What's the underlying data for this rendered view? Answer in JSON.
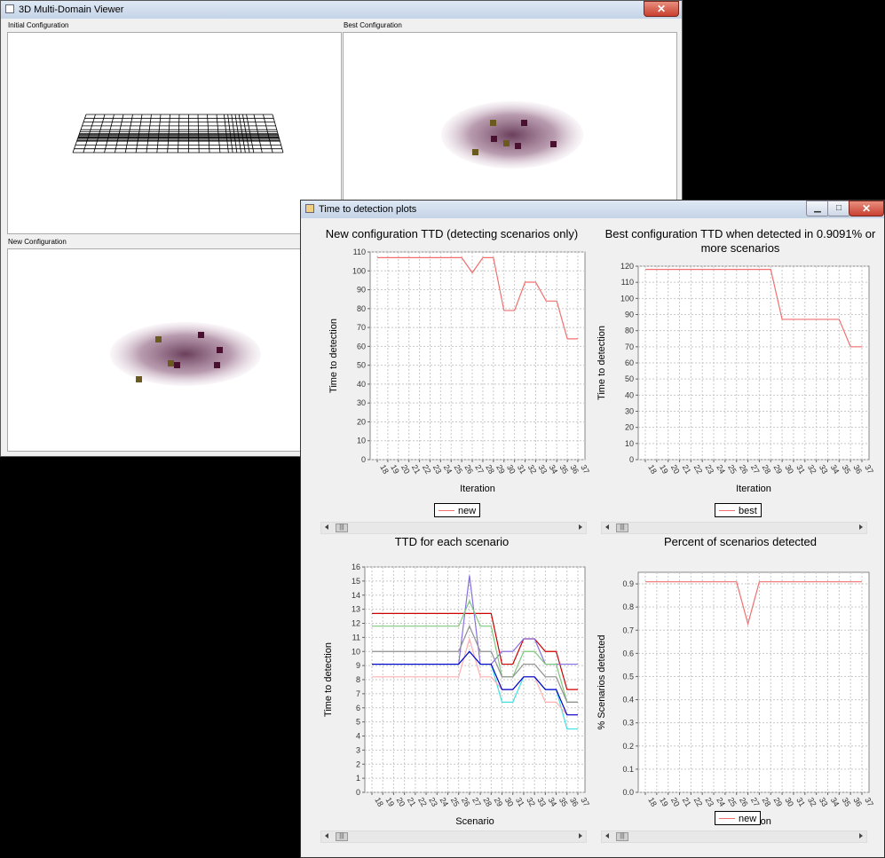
{
  "viewer": {
    "title": "3D Multi-Domain Viewer",
    "close_label": "✕",
    "panels": {
      "initial": "Initial Configuration",
      "best": "Best Configuration",
      "new": "New Configuration"
    }
  },
  "ttd_window": {
    "title": "Time to detection plots",
    "minimize_label": "▁",
    "maximize_label": "□",
    "close_label": "✕"
  },
  "charts": {
    "new_ttd": {
      "title": "New configuration TTD (detecting scenarios only)",
      "ylabel": "Time to detection",
      "xlabel": "Iteration",
      "legend": "new"
    },
    "best_ttd": {
      "title_line1": "Best configuration TTD when detected in 0.9091% or",
      "title_line2": "more scenarios",
      "ylabel": "Time to detection",
      "xlabel": "Iteration",
      "legend": "best"
    },
    "scenario_ttd": {
      "title": "TTD for each scenario",
      "ylabel": "Time to detection",
      "xlabel": "Scenario"
    },
    "percent": {
      "title": "Percent of scenarios detected",
      "ylabel": "% Scenarios detected",
      "xlabel": "Iteration",
      "legend": "new"
    }
  },
  "colors": {
    "new_line": "#f07070",
    "best_line": "#f07070",
    "window_bg": "#f0f0f0",
    "close_red": "#c84030"
  },
  "chart_data": [
    {
      "type": "line",
      "title": "New configuration TTD (detecting scenarios only)",
      "xlabel": "Iteration",
      "ylabel": "Time to detection",
      "categories": [
        "18",
        "19",
        "20",
        "21",
        "22",
        "23",
        "24",
        "25",
        "26",
        "27",
        "28",
        "29",
        "30",
        "31",
        "32",
        "33",
        "34",
        "35",
        "36",
        "37"
      ],
      "ylim": [
        0,
        110
      ],
      "yticks": [
        0,
        10,
        20,
        30,
        40,
        50,
        60,
        70,
        80,
        90,
        100,
        110
      ],
      "series": [
        {
          "name": "new",
          "color": "#f07070",
          "values": [
            107,
            107,
            107,
            107,
            107,
            107,
            107,
            107,
            107,
            99,
            107,
            107,
            79,
            79,
            94,
            94,
            84,
            84,
            64,
            64
          ]
        }
      ],
      "grid": true,
      "legend": "bottom"
    },
    {
      "type": "line",
      "title": "Best configuration TTD when detected in 0.9091% or more scenarios",
      "xlabel": "Iteration",
      "ylabel": "Time to detection",
      "categories": [
        "18",
        "19",
        "20",
        "21",
        "22",
        "23",
        "24",
        "25",
        "26",
        "27",
        "28",
        "29",
        "30",
        "31",
        "32",
        "33",
        "34",
        "35",
        "36",
        "37"
      ],
      "ylim": [
        0,
        120
      ],
      "yticks": [
        0,
        10,
        20,
        30,
        40,
        50,
        60,
        70,
        80,
        90,
        100,
        110,
        120
      ],
      "series": [
        {
          "name": "best",
          "color": "#f07070",
          "values": [
            118,
            118,
            118,
            118,
            118,
            118,
            118,
            118,
            118,
            118,
            118,
            118,
            87,
            87,
            87,
            87,
            87,
            87,
            70,
            70
          ]
        }
      ],
      "grid": true,
      "legend": "bottom"
    },
    {
      "type": "line",
      "title": "TTD for each scenario",
      "xlabel": "Scenario",
      "ylabel": "Time to detection",
      "categories": [
        "18",
        "19",
        "20",
        "21",
        "22",
        "23",
        "24",
        "25",
        "26",
        "27",
        "28",
        "29",
        "30",
        "31",
        "32",
        "33",
        "34",
        "35",
        "36",
        "37"
      ],
      "ylim": [
        0,
        16
      ],
      "yticks": [
        0,
        1,
        2,
        3,
        4,
        5,
        6,
        7,
        8,
        9,
        10,
        11,
        12,
        13,
        14,
        15,
        16
      ],
      "series": [
        {
          "color": "#cc0000",
          "values": [
            12.7,
            12.7,
            12.7,
            12.7,
            12.7,
            12.7,
            12.7,
            12.7,
            12.7,
            12.7,
            12.7,
            12.7,
            9.1,
            9.1,
            10.9,
            10.9,
            10.0,
            10.0,
            7.3,
            7.3
          ]
        },
        {
          "color": "#8870e0",
          "values": [
            9.1,
            9.1,
            9.1,
            9.1,
            9.1,
            9.1,
            9.1,
            9.1,
            9.1,
            15.4,
            9.1,
            9.1,
            10.0,
            10.0,
            10.9,
            10.9,
            9.1,
            9.1,
            9.1,
            9.1
          ]
        },
        {
          "color": "#7ec87e",
          "values": [
            11.8,
            11.8,
            11.8,
            11.8,
            11.8,
            11.8,
            11.8,
            11.8,
            11.8,
            13.6,
            11.8,
            11.8,
            8.2,
            8.2,
            10.0,
            10.0,
            9.1,
            9.1,
            6.4,
            6.4
          ]
        },
        {
          "color": "#909090",
          "values": [
            10.0,
            10.0,
            10.0,
            10.0,
            10.0,
            10.0,
            10.0,
            10.0,
            10.0,
            11.8,
            10.0,
            10.0,
            8.2,
            8.2,
            9.1,
            9.1,
            8.2,
            8.2,
            6.4,
            6.4
          ]
        },
        {
          "color": "#40e0e0",
          "values": [
            9.1,
            9.1,
            9.1,
            9.1,
            9.1,
            9.1,
            9.1,
            9.1,
            9.1,
            10.0,
            9.1,
            9.1,
            6.4,
            6.4,
            8.2,
            8.2,
            7.3,
            7.3,
            4.5,
            4.5
          ]
        },
        {
          "color": "#ffb0b0",
          "values": [
            8.2,
            8.2,
            8.2,
            8.2,
            8.2,
            8.2,
            8.2,
            8.2,
            8.2,
            10.9,
            8.2,
            8.2,
            7.3,
            7.3,
            8.2,
            8.2,
            6.4,
            6.4,
            5.5,
            5.5
          ]
        },
        {
          "color": "#0000cc",
          "values": [
            9.1,
            9.1,
            9.1,
            9.1,
            9.1,
            9.1,
            9.1,
            9.1,
            9.1,
            10.0,
            9.1,
            9.1,
            7.3,
            7.3,
            8.2,
            8.2,
            7.3,
            7.3,
            5.5,
            5.5
          ]
        }
      ],
      "grid": true
    },
    {
      "type": "line",
      "title": "Percent of scenarios detected",
      "xlabel": "Iteration",
      "ylabel": "% Scenarios detected",
      "categories": [
        "18",
        "19",
        "20",
        "21",
        "22",
        "23",
        "24",
        "25",
        "26",
        "27",
        "28",
        "29",
        "30",
        "31",
        "32",
        "33",
        "34",
        "35",
        "36",
        "37"
      ],
      "ylim": [
        0,
        0.95
      ],
      "yticks": [
        0.0,
        0.1,
        0.2,
        0.3,
        0.4,
        0.5,
        0.6,
        0.7,
        0.8,
        0.9
      ],
      "series": [
        {
          "name": "new",
          "color": "#f07070",
          "values": [
            0.909,
            0.909,
            0.909,
            0.909,
            0.909,
            0.909,
            0.909,
            0.909,
            0.909,
            0.727,
            0.909,
            0.909,
            0.909,
            0.909,
            0.909,
            0.909,
            0.909,
            0.909,
            0.909,
            0.909
          ]
        }
      ],
      "grid": true,
      "legend": "bottom"
    }
  ]
}
